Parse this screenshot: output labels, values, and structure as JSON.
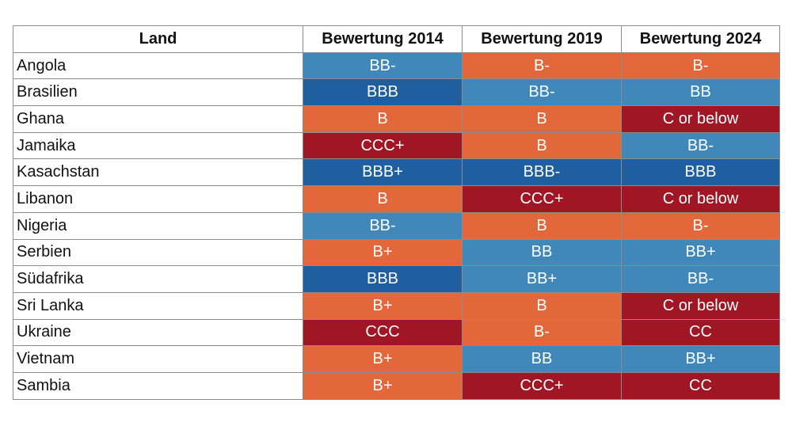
{
  "chart_data": {
    "type": "table",
    "headers": [
      "Land",
      "Bewertung 2014",
      "Bewertung 2019",
      "Bewertung 2024"
    ],
    "rows": [
      {
        "country": "Angola",
        "ratings": [
          "BB-",
          "B-",
          "B-"
        ]
      },
      {
        "country": "Brasilien",
        "ratings": [
          "BBB",
          "BB-",
          "BB"
        ]
      },
      {
        "country": "Ghana",
        "ratings": [
          "B",
          "B",
          "C or below"
        ]
      },
      {
        "country": "Jamaika",
        "ratings": [
          "CCC+",
          "B",
          "BB-"
        ]
      },
      {
        "country": "Kasachstan",
        "ratings": [
          "BBB+",
          "BBB-",
          "BBB"
        ]
      },
      {
        "country": "Libanon",
        "ratings": [
          "B",
          "CCC+",
          "C or below"
        ]
      },
      {
        "country": "Nigeria",
        "ratings": [
          "BB-",
          "B",
          "B-"
        ]
      },
      {
        "country": "Serbien",
        "ratings": [
          "B+",
          "BB",
          "BB+"
        ]
      },
      {
        "country": "Südafrika",
        "ratings": [
          "BBB",
          "BB+",
          "BB-"
        ]
      },
      {
        "country": "Sri Lanka",
        "ratings": [
          "B+",
          "B",
          "C or below"
        ]
      },
      {
        "country": "Ukraine",
        "ratings": [
          "CCC",
          "B-",
          "CC"
        ]
      },
      {
        "country": "Vietnam",
        "ratings": [
          "B+",
          "BB",
          "BB+"
        ]
      },
      {
        "country": "Sambia",
        "ratings": [
          "B+",
          "CCC+",
          "CC"
        ]
      }
    ],
    "rating_colors": {
      "BBB+": "#1f5fa0",
      "BBB": "#1f5fa0",
      "BBB-": "#1f5fa0",
      "BB+": "#3f88b9",
      "BB": "#3f88b9",
      "BB-": "#3f88b9",
      "B+": "#e2673b",
      "B": "#e2673b",
      "B-": "#e2673b",
      "CCC+": "#a01624",
      "CCC": "#a01624",
      "CC": "#a01624",
      "C or below": "#a01624"
    }
  }
}
